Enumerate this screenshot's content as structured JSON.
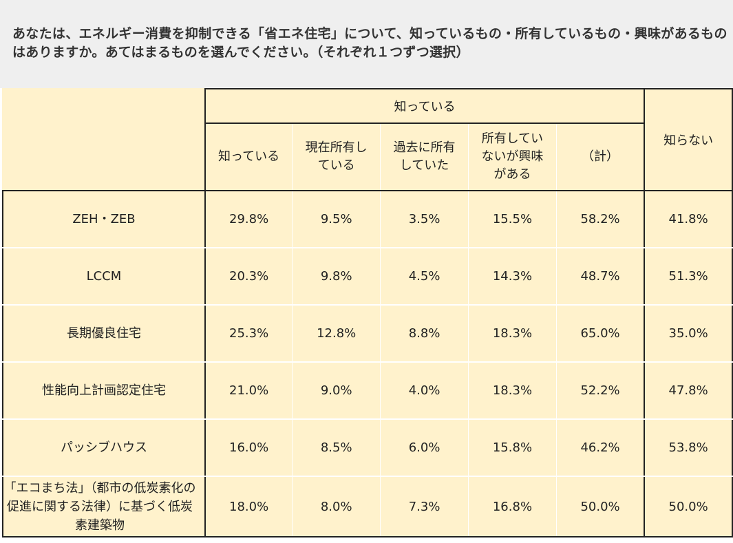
{
  "question": "あなたは、エネルギー消費を抑制できる「省エネ住宅」について、知っているもの・所有しているもの・興味があるものはありますか。あてはまるものを選んでください。（それぞれ１つずつ選択）",
  "header": {
    "group_label": "知っている",
    "unknown_label": "知らない",
    "sub_labels": [
      "知っている",
      "現在所有している",
      "過去に所有していた",
      "所有していないが興味がある",
      "（計）"
    ]
  },
  "rows": [
    {
      "label": "ZEH・ZEB",
      "values": [
        "29.8%",
        "9.5%",
        "3.5%",
        "15.5%",
        "58.2%",
        "41.8%"
      ]
    },
    {
      "label": "LCCM",
      "values": [
        "20.3%",
        "9.8%",
        "4.5%",
        "14.3%",
        "48.7%",
        "51.3%"
      ]
    },
    {
      "label": "長期優良住宅",
      "values": [
        "25.3%",
        "12.8%",
        "8.8%",
        "18.3%",
        "65.0%",
        "35.0%"
      ]
    },
    {
      "label": "性能向上計画認定住宅",
      "values": [
        "21.0%",
        "9.0%",
        "4.0%",
        "18.3%",
        "52.2%",
        "47.8%"
      ]
    },
    {
      "label": "パッシブハウス",
      "values": [
        "16.0%",
        "8.5%",
        "6.0%",
        "15.8%",
        "46.2%",
        "53.8%"
      ]
    },
    {
      "label": "「エコまち法」（都市の低炭素化の促進に関する法律）に基づく低炭素建築物",
      "values": [
        "18.0%",
        "8.0%",
        "7.3%",
        "16.8%",
        "50.0%",
        "50.0%"
      ]
    }
  ]
}
